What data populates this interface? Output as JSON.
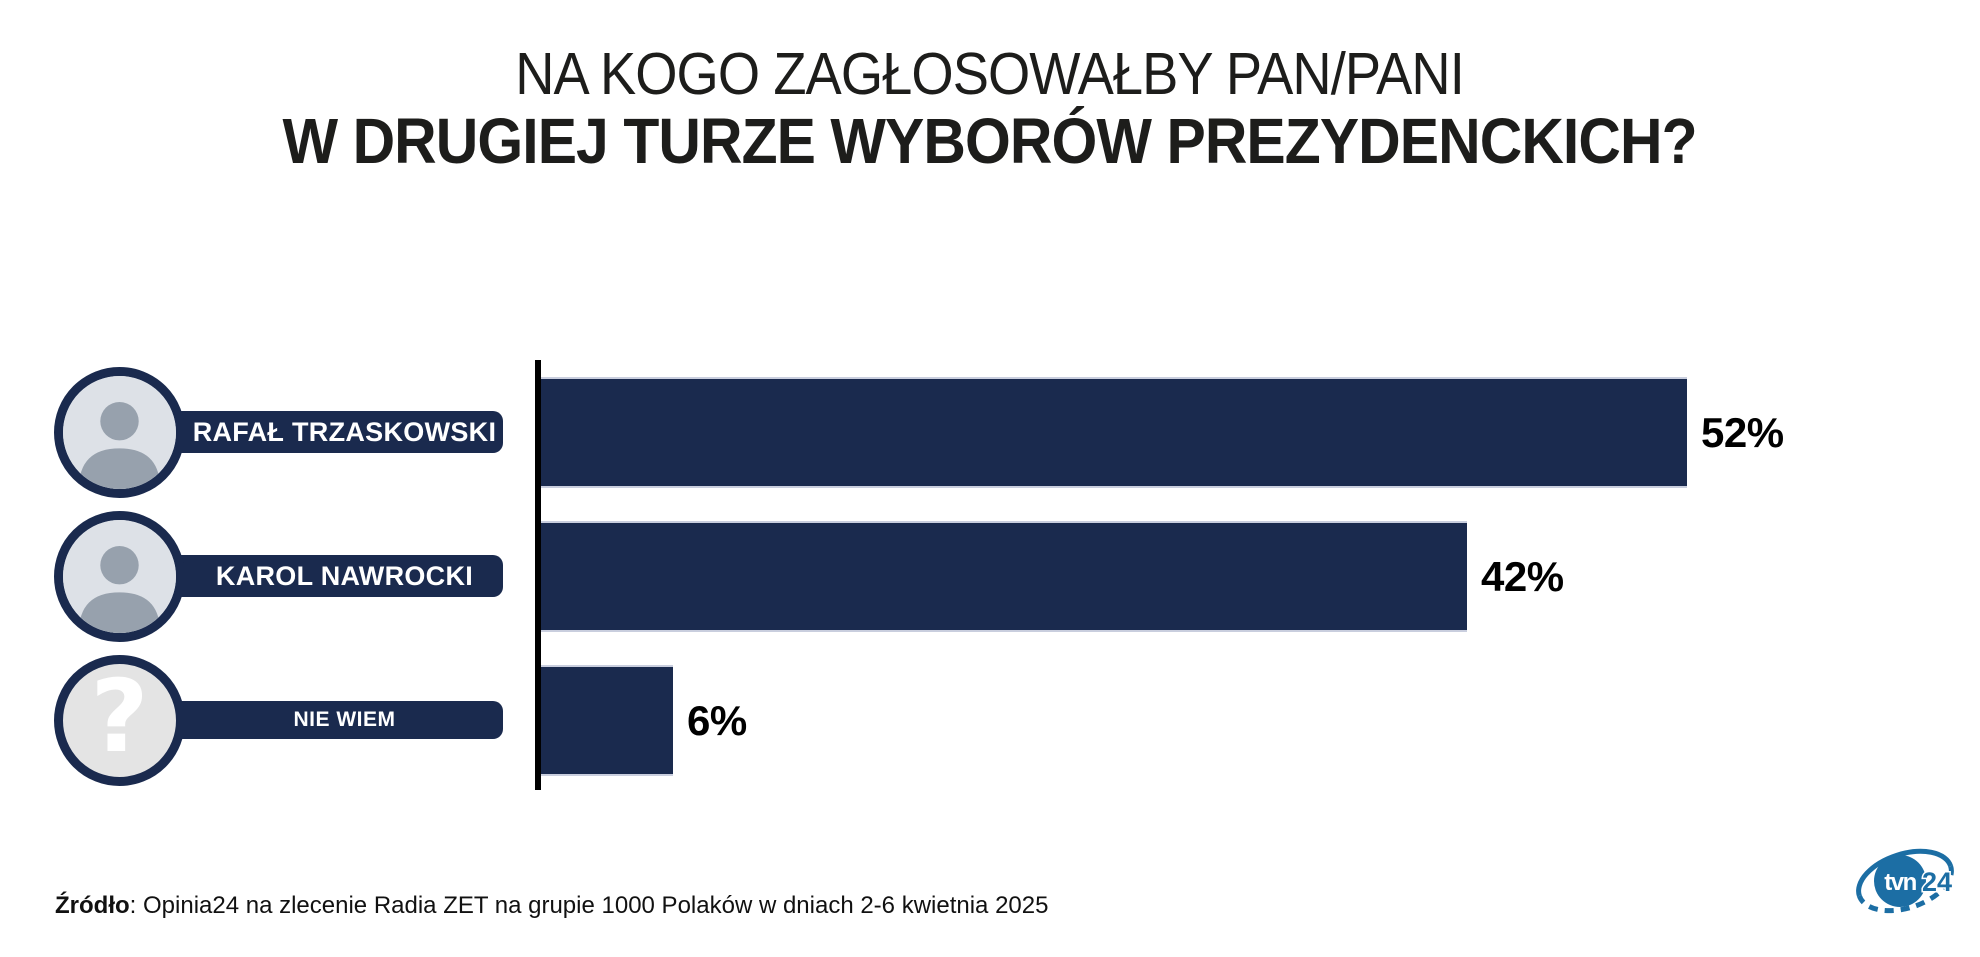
{
  "title": {
    "line1": "NA KOGO ZAGŁOSOWAŁBY PAN/PANI",
    "line2": "W DRUGIEJ TURZE WYBORÓW PREZYDENCKICH?"
  },
  "chart_data": {
    "type": "bar",
    "orientation": "horizontal",
    "categories": [
      "RAFAŁ TRZASKOWSKI",
      "KAROL NAWROCKI",
      "NIE WIEM"
    ],
    "values": [
      52,
      42,
      6
    ],
    "value_labels": [
      "52%",
      "42%",
      "6%"
    ],
    "unit": "percent",
    "xlim": [
      0,
      52
    ],
    "grid": false,
    "value_label_position": "outside-right",
    "bar_color": "#1a2a4e",
    "axis_color": "#000000"
  },
  "question_glyph": "?",
  "footer": {
    "source_label": "Źródło",
    "source_text": ": Opinia24 na zlecenie Radia ZET na grupie 1000 Polaków w dniach 2-6 kwietnia 2025"
  },
  "logo": {
    "brand": "tvn",
    "brand_number": "24"
  },
  "colors": {
    "navy": "#1a2a4e",
    "bar_edge": "#c9cede",
    "tvn_blue": "#1c6ea4",
    "question_bg": "#e4e4e4",
    "title_text": "#1d1d1b"
  }
}
